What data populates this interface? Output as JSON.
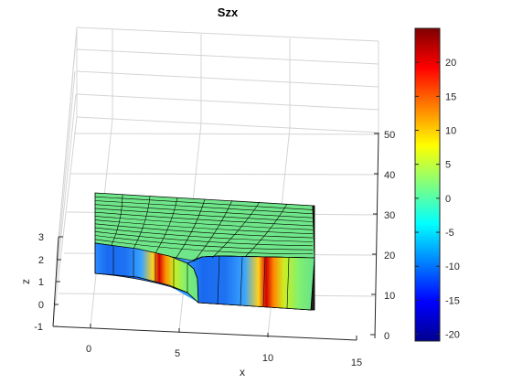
{
  "chart_data": {
    "type": "surface3d",
    "title": "Szx",
    "xlabel": "x",
    "ylabel": "",
    "zlabel": "z",
    "x_ticks": [
      "0",
      "5",
      "10",
      "15"
    ],
    "y_ticks": [
      "0",
      "10",
      "20",
      "30",
      "40",
      "50"
    ],
    "z_ticks": [
      "-1",
      "0",
      "1",
      "2",
      "3"
    ],
    "xlim": [
      -2,
      15
    ],
    "ylim": [
      -2,
      50
    ],
    "zlim": [
      -1,
      3
    ],
    "grid": true,
    "box": true,
    "shape": {
      "x_range": [
        0,
        12.5
      ],
      "y_range": [
        0,
        30
      ],
      "z_range": [
        0,
        1.5
      ],
      "hole_radius": 6
    },
    "colorbar": {
      "colormap": "jet",
      "limits": [
        -21,
        25
      ],
      "ticks": [
        "20",
        "15",
        "10",
        "5",
        "0",
        "-5",
        "-10",
        "-15",
        "-20"
      ]
    }
  }
}
